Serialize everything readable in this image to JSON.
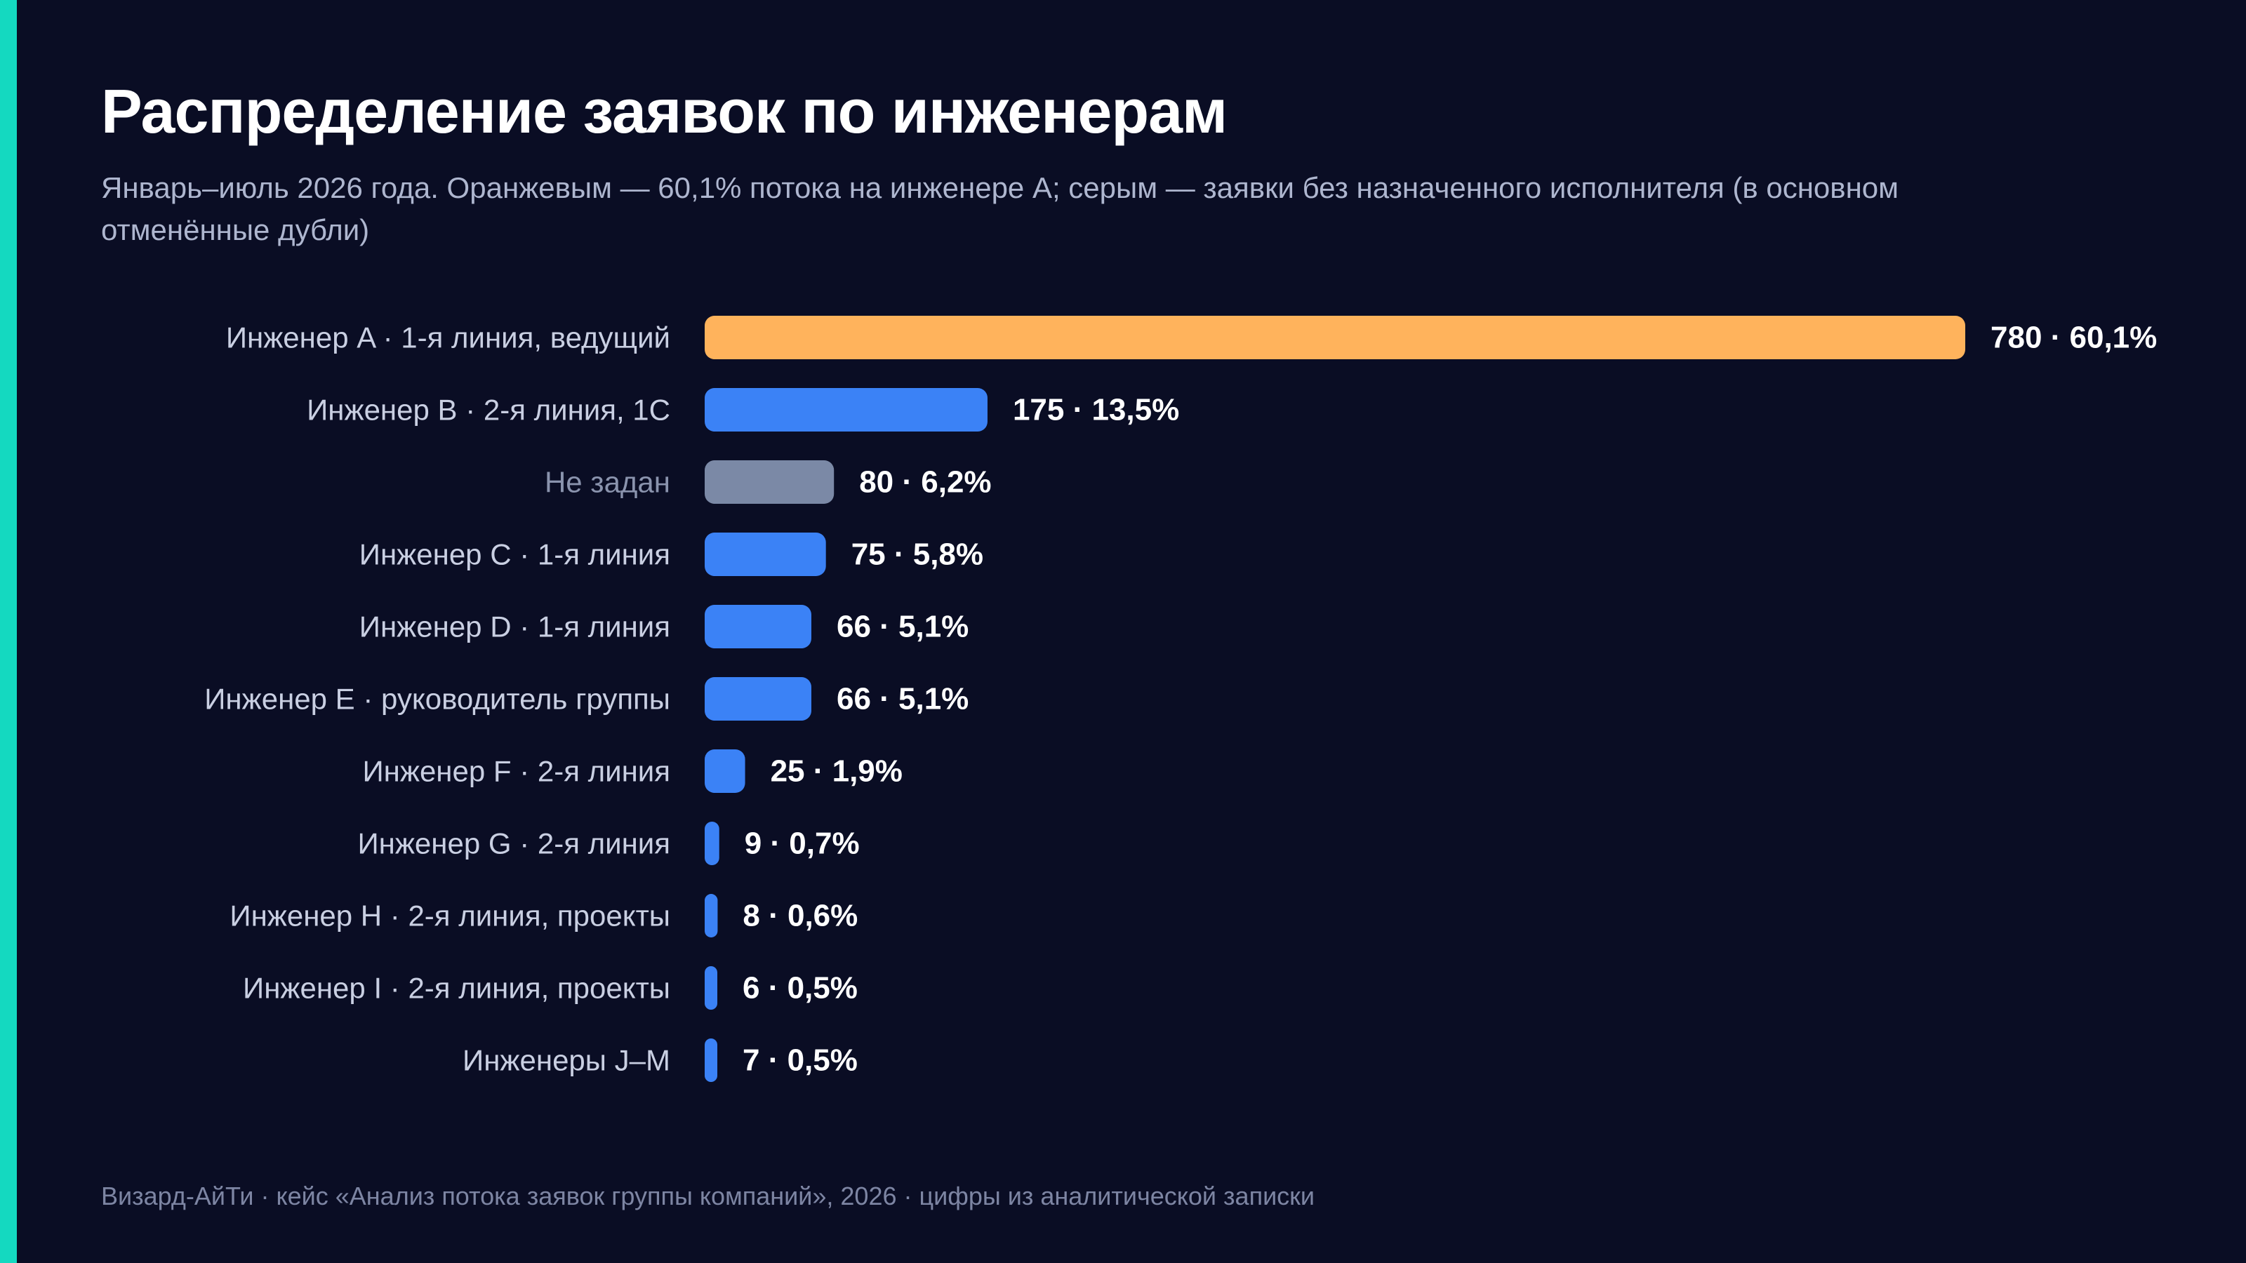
{
  "title": "Распределение заявок по инженерам",
  "subtitle": "Январь–июль 2026 года. Оранжевым — 60,1% потока на инженере A; серым — заявки без назначенного исполнителя (в основном отменённые дубли)",
  "footer": "Визард-АйТи · кейс «Анализ потока заявок группы компаний», 2026 · цифры из аналитической записки",
  "colors": {
    "background": "#0a0d24",
    "accent_stripe": "#14d9c0",
    "highlight": "#ffb35c",
    "default_bar": "#3b82f6",
    "unassigned": "#7b89a6"
  },
  "chart_data": {
    "type": "bar",
    "orientation": "horizontal",
    "title": "Распределение заявок по инженерам",
    "categories": [
      "Инженер A · 1-я линия, ведущий",
      "Инженер B · 2-я линия, 1С",
      "Не задан",
      "Инженер C · 1-я линия",
      "Инженер D · 1-я линия",
      "Инженер E · руководитель группы",
      "Инженер F · 2-я линия",
      "Инженер G · 2-я линия",
      "Инженер H · 2-я линия, проекты",
      "Инженер I · 2-я линия, проекты",
      "Инженеры J–M"
    ],
    "values": [
      780,
      175,
      80,
      75,
      66,
      66,
      25,
      9,
      8,
      6,
      7
    ],
    "percent_labels": [
      "60,1%",
      "13,5%",
      "6,2%",
      "5,8%",
      "5,1%",
      "5,1%",
      "1,9%",
      "0,7%",
      "0,6%",
      "0,5%",
      "0,5%"
    ],
    "value_labels": [
      "780 · 60,1%",
      "175 · 13,5%",
      "80 · 6,2%",
      "75 · 5,8%",
      "66 · 5,1%",
      "66 · 5,1%",
      "25 · 1,9%",
      "9 · 0,7%",
      "8 · 0,6%",
      "6 · 0,5%",
      "7 · 0,5%"
    ],
    "bar_roles": [
      "highlight",
      "default",
      "unassigned",
      "default",
      "default",
      "default",
      "default",
      "default",
      "default",
      "default",
      "default"
    ],
    "xlim": [
      0,
      780
    ],
    "grid": false,
    "legend": "none"
  }
}
